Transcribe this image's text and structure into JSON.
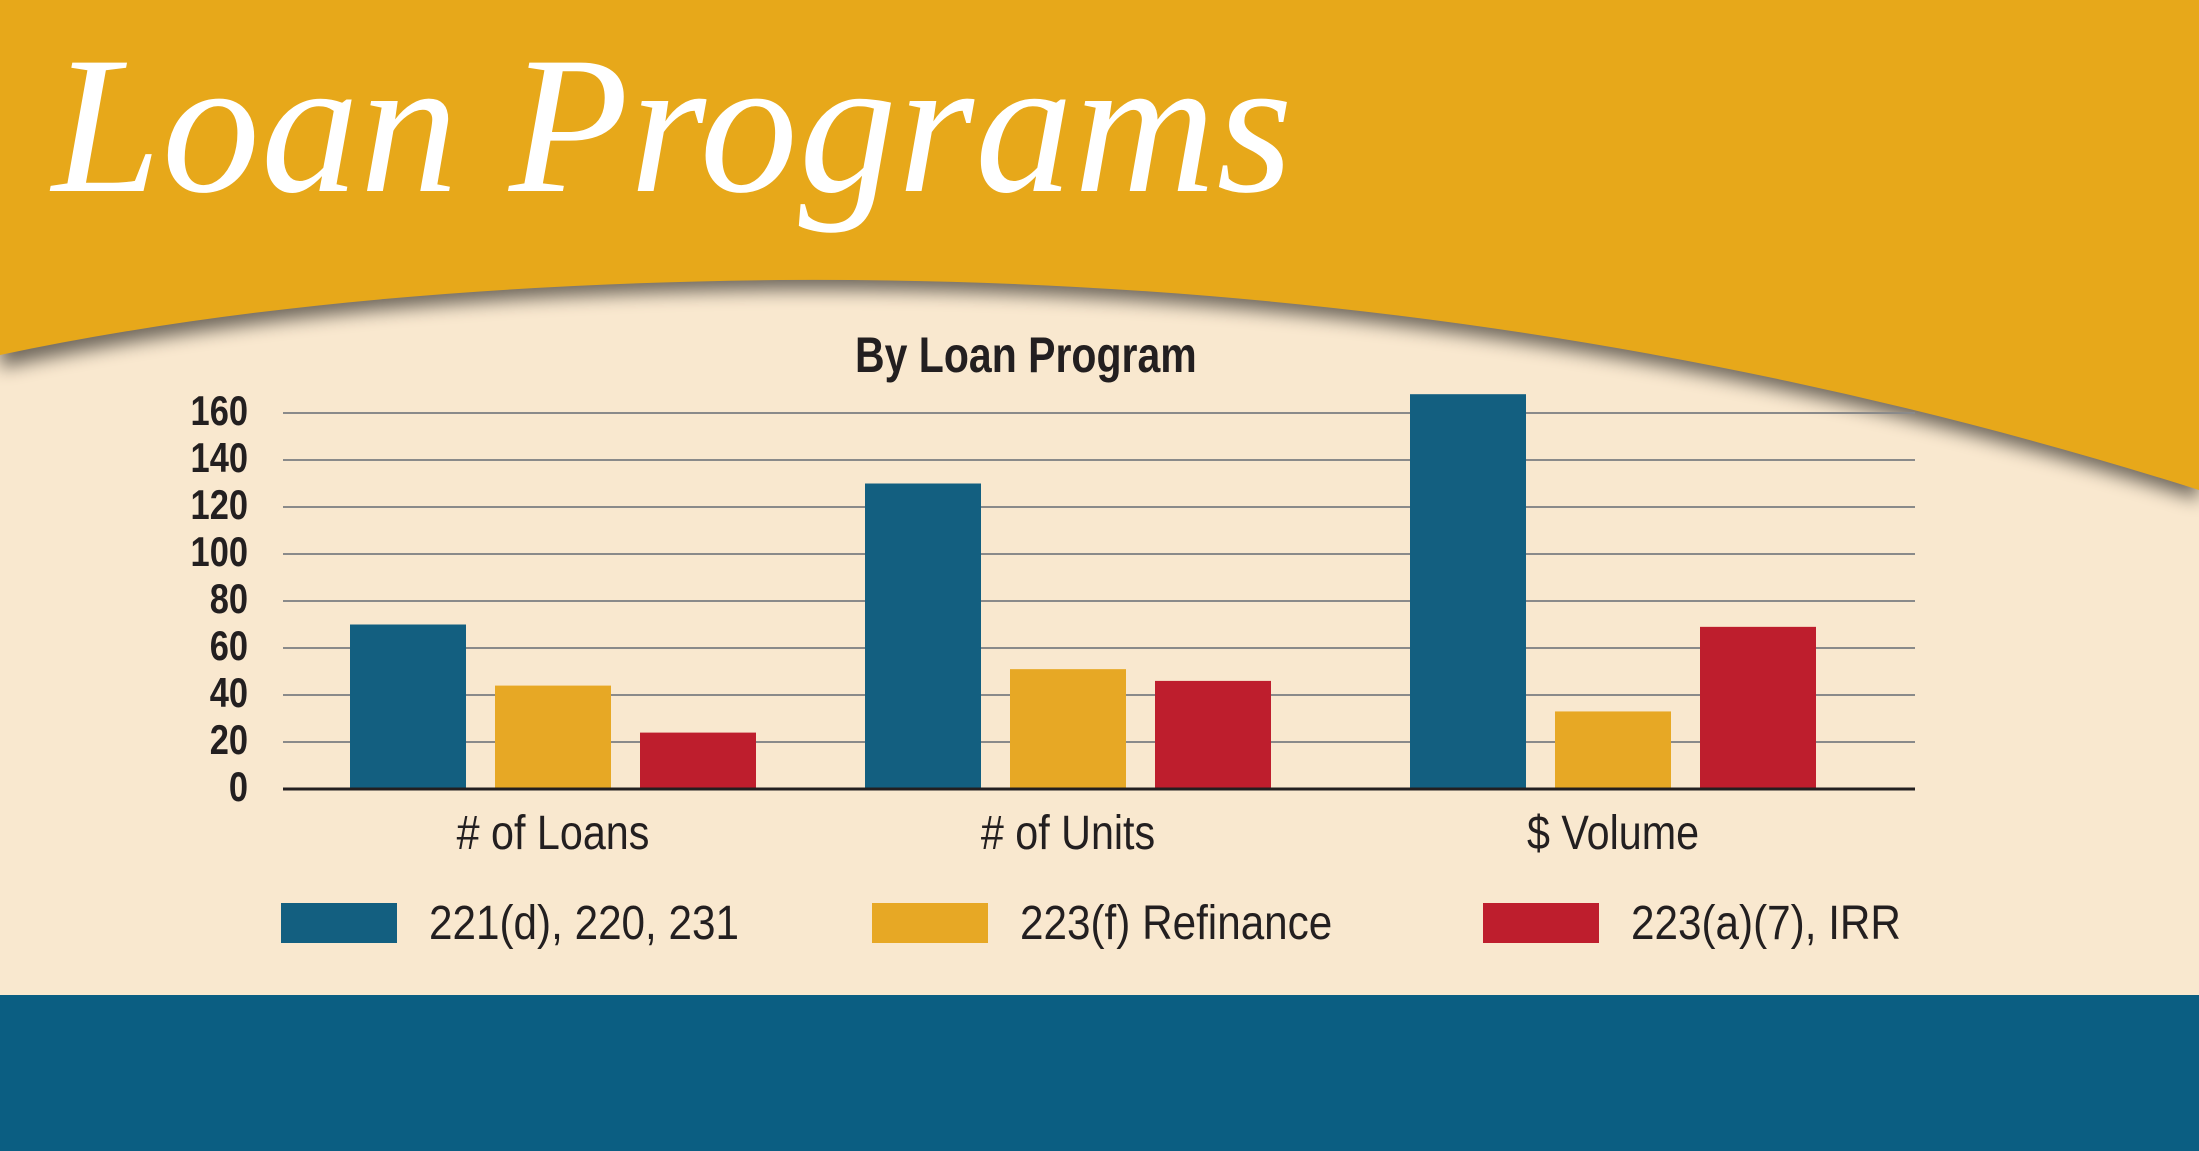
{
  "header": {
    "title": "Loan Programs"
  },
  "colors": {
    "gold": "#e7a81a",
    "cream": "#f9e8cf",
    "navy": "#0b5e82",
    "series_blue": "#135f80",
    "series_gold": "#e7a825",
    "series_red": "#be1e2d"
  },
  "chart_data": {
    "type": "bar",
    "title": "By Loan Program",
    "categories": [
      "# of Loans",
      "# of Units",
      "$ Volume"
    ],
    "series": [
      {
        "name": "221(d), 220, 231",
        "color": "#135f80",
        "values": [
          70,
          130,
          168
        ]
      },
      {
        "name": "223(f) Refinance",
        "color": "#e7a825",
        "values": [
          44,
          51,
          33
        ]
      },
      {
        "name": "223(a)(7), IRR",
        "color": "#be1e2d",
        "values": [
          24,
          46,
          69
        ]
      }
    ],
    "yticks": [
      "0",
      "20",
      "40",
      "60",
      "80",
      "100",
      "120",
      "140",
      "160"
    ],
    "ylim": [
      0,
      160
    ],
    "xlabel": "",
    "ylabel": "",
    "grid": true,
    "legend": "bottom"
  }
}
